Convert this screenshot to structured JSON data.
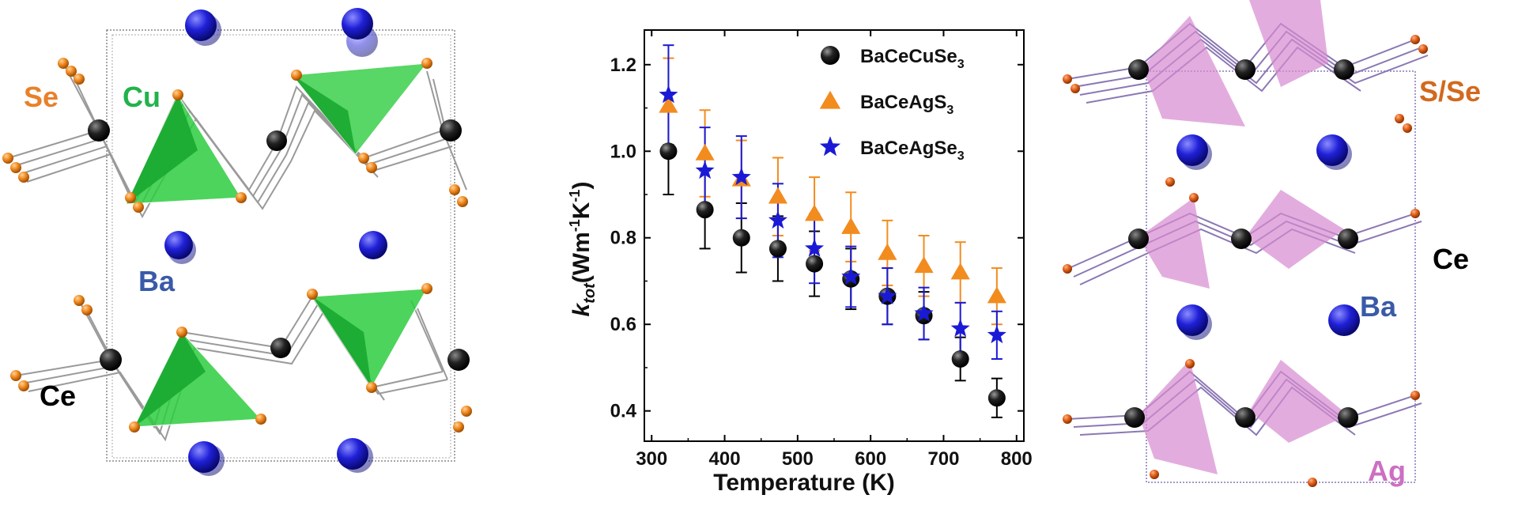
{
  "left_structure": {
    "labels": {
      "se": "Se",
      "cu": "Cu",
      "ba": "Ba",
      "ce": "Ce"
    },
    "colors": {
      "se": "#e8812a",
      "cu": "#22b24c",
      "ba": "#3a5aa8",
      "ce": "#000000",
      "polyhedron": "#36d24a"
    }
  },
  "right_structure": {
    "labels": {
      "s_se": "S/Se",
      "ce": "Ce",
      "ba": "Ba",
      "ag": "Ag"
    },
    "colors": {
      "s_se": "#d2691e",
      "ce": "#000000",
      "ba": "#3a5aa8",
      "ag": "#cc6fc2",
      "polyhedron": "#d58ad0"
    }
  },
  "chart_data": {
    "type": "scatter",
    "xlabel": "Temperature (K)",
    "ylabel_main": "k",
    "ylabel_sub": "tot",
    "ylabel_unit": "(Wm",
    "ylabel_unit_exp1": "-1",
    "ylabel_unit_mid": "K",
    "ylabel_unit_exp2": "-1",
    "ylabel_unit_end": ")",
    "xlim": [
      290,
      810
    ],
    "ylim": [
      0.33,
      1.28
    ],
    "xticks": [
      300,
      400,
      500,
      600,
      700,
      800
    ],
    "yticks": [
      0.4,
      0.6,
      0.8,
      1.0,
      1.2
    ],
    "xtick_labels": [
      "300",
      "400",
      "500",
      "600",
      "700",
      "800"
    ],
    "ytick_labels": [
      "0.4",
      "0.6",
      "0.8",
      "1.0",
      "1.2"
    ],
    "legend_position": "top-right",
    "series": [
      {
        "name_base": "BaCeCuSe",
        "name_sub": "3",
        "marker": "sphere",
        "color": "#000000",
        "errcolor": "#000000",
        "x": [
          323,
          373,
          423,
          473,
          523,
          573,
          623,
          673,
          723,
          773
        ],
        "y": [
          1.0,
          0.865,
          0.8,
          0.775,
          0.74,
          0.705,
          0.665,
          0.62,
          0.52,
          0.43
        ],
        "err": [
          0.1,
          0.09,
          0.08,
          0.075,
          0.075,
          0.07,
          0.065,
          0.055,
          0.05,
          0.045
        ]
      },
      {
        "name_base": "BaCeAgS",
        "name_sub": "3",
        "marker": "triangle",
        "color": "#f28c1e",
        "errcolor": "#f28c1e",
        "x": [
          323,
          373,
          423,
          473,
          523,
          573,
          623,
          673,
          723,
          773
        ],
        "y": [
          1.105,
          0.995,
          0.935,
          0.895,
          0.855,
          0.825,
          0.765,
          0.735,
          0.72,
          0.665
        ],
        "err": [
          0.11,
          0.1,
          0.09,
          0.09,
          0.085,
          0.08,
          0.075,
          0.07,
          0.07,
          0.065
        ]
      },
      {
        "name_base": "BaCeAgSe",
        "name_sub": "3",
        "marker": "star",
        "color": "#1a1ad6",
        "errcolor": "#1a1ad6",
        "x": [
          323,
          373,
          423,
          473,
          523,
          573,
          623,
          673,
          723,
          773
        ],
        "y": [
          1.13,
          0.955,
          0.94,
          0.84,
          0.775,
          0.71,
          0.665,
          0.625,
          0.59,
          0.575
        ],
        "err": [
          0.115,
          0.1,
          0.095,
          0.085,
          0.08,
          0.07,
          0.065,
          0.06,
          0.06,
          0.055
        ]
      }
    ]
  }
}
